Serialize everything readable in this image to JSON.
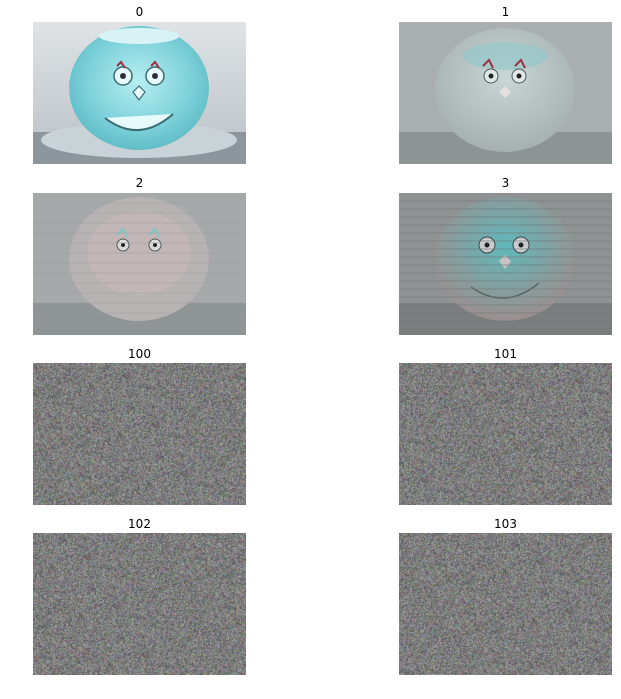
{
  "panels": [
    {
      "title": "0"
    },
    {
      "title": "1"
    },
    {
      "title": "2"
    },
    {
      "title": "3"
    },
    {
      "title": "100"
    },
    {
      "title": "101"
    },
    {
      "title": "102"
    },
    {
      "title": "103"
    }
  ]
}
